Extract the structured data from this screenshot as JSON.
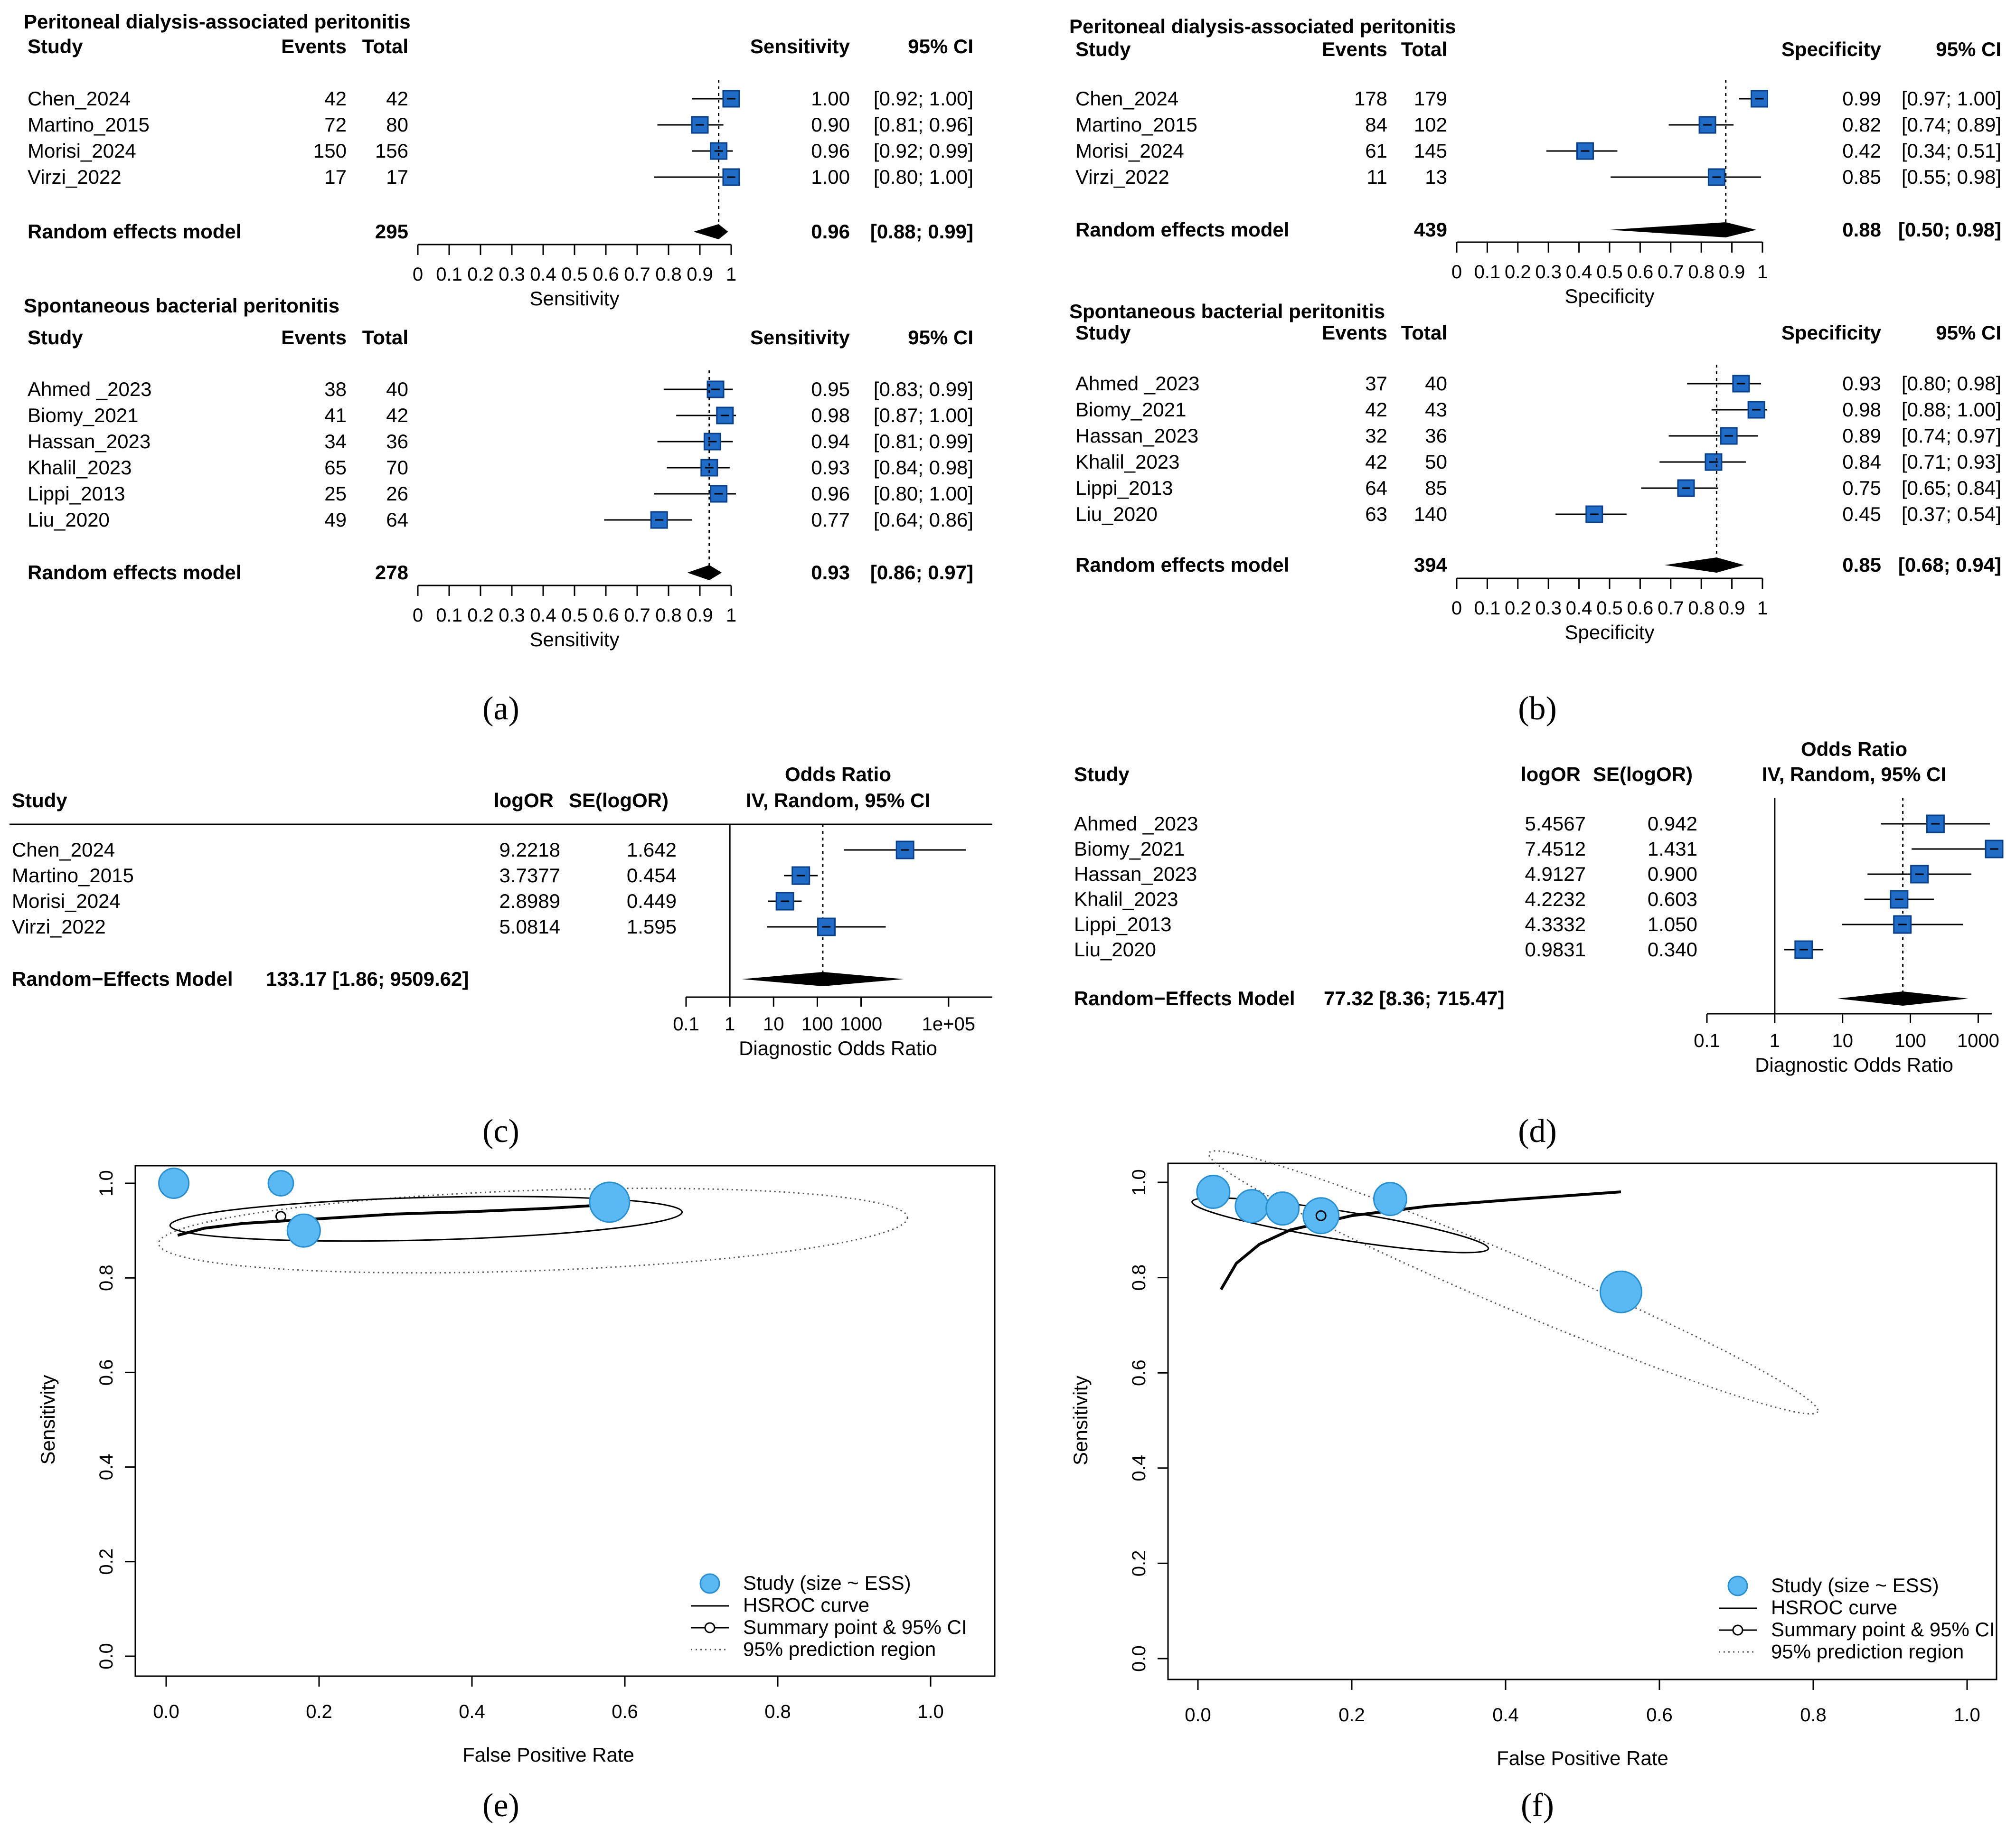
{
  "chart_data": [
    {
      "id": "a",
      "panel_label": "(a)",
      "type": "forest",
      "measure": "Sensitivity",
      "ci_label": "95% CI",
      "col_study": "Study",
      "col_events": "Events",
      "col_total": "Total",
      "axis_label": "Sensitivity",
      "xlim": [
        0,
        1
      ],
      "ticks": [
        {
          "v": 0,
          "l": "0"
        },
        {
          "v": 0.1,
          "l": "0.1"
        },
        {
          "v": 0.2,
          "l": "0.2"
        },
        {
          "v": 0.3,
          "l": "0.3"
        },
        {
          "v": 0.4,
          "l": "0.4"
        },
        {
          "v": 0.5,
          "l": "0.5"
        },
        {
          "v": 0.6,
          "l": "0.6"
        },
        {
          "v": 0.7,
          "l": "0.7"
        },
        {
          "v": 0.8,
          "l": "0.8"
        },
        {
          "v": 0.9,
          "l": "0.9"
        },
        {
          "v": 1,
          "l": "1"
        }
      ],
      "groups": [
        {
          "title": "Peritoneal dialysis-associated peritonitis",
          "studies": [
            {
              "name": "Chen_2024",
              "events": "42",
              "total": "42",
              "est": 1.0,
              "lo": 0.92,
              "hi": 1.0,
              "text": "1.00",
              "ci_text": "[0.92; 1.00]"
            },
            {
              "name": "Martino_2015",
              "events": "72",
              "total": "80",
              "est": 0.9,
              "lo": 0.81,
              "hi": 0.96,
              "text": "0.90",
              "ci_text": "[0.81; 0.96]"
            },
            {
              "name": "Morisi_2024",
              "events": "150",
              "total": "156",
              "est": 0.96,
              "lo": 0.92,
              "hi": 0.99,
              "text": "0.96",
              "ci_text": "[0.92; 0.99]"
            },
            {
              "name": "Virzi_2022",
              "events": "17",
              "total": "17",
              "est": 1.0,
              "lo": 0.8,
              "hi": 1.0,
              "text": "1.00",
              "ci_text": "[0.80; 1.00]"
            }
          ],
          "pooled": {
            "label": "Random effects model",
            "total": "295",
            "est": 0.96,
            "lo": 0.88,
            "hi": 0.99,
            "text": "0.96",
            "ci_text": "[0.88; 0.99]"
          }
        },
        {
          "title": "Spontaneous bacterial peritonitis",
          "studies": [
            {
              "name": "Ahmed _2023",
              "events": "38",
              "total": "40",
              "est": 0.95,
              "lo": 0.83,
              "hi": 0.99,
              "text": "0.95",
              "ci_text": "[0.83; 0.99]"
            },
            {
              "name": "Biomy_2021",
              "events": "41",
              "total": "42",
              "est": 0.98,
              "lo": 0.87,
              "hi": 1.0,
              "text": "0.98",
              "ci_text": "[0.87; 1.00]"
            },
            {
              "name": "Hassan_2023",
              "events": "34",
              "total": "36",
              "est": 0.94,
              "lo": 0.81,
              "hi": 0.99,
              "text": "0.94",
              "ci_text": "[0.81; 0.99]"
            },
            {
              "name": "Khalil_2023",
              "events": "65",
              "total": "70",
              "est": 0.93,
              "lo": 0.84,
              "hi": 0.98,
              "text": "0.93",
              "ci_text": "[0.84; 0.98]"
            },
            {
              "name": "Lippi_2013",
              "events": "25",
              "total": "26",
              "est": 0.96,
              "lo": 0.8,
              "hi": 1.0,
              "text": "0.96",
              "ci_text": "[0.80; 1.00]"
            },
            {
              "name": "Liu_2020",
              "events": "49",
              "total": "64",
              "est": 0.77,
              "lo": 0.64,
              "hi": 0.86,
              "text": "0.77",
              "ci_text": "[0.64; 0.86]"
            }
          ],
          "pooled": {
            "label": "Random effects model",
            "total": "278",
            "est": 0.93,
            "lo": 0.86,
            "hi": 0.97,
            "text": "0.93",
            "ci_text": "[0.86; 0.97]"
          }
        }
      ]
    },
    {
      "id": "b",
      "panel_label": "(b)",
      "type": "forest",
      "measure": "Specificity",
      "ci_label": "95% CI",
      "col_study": "Study",
      "col_events": "Events",
      "col_total": "Total",
      "axis_label": "Specificity",
      "xlim": [
        0,
        1
      ],
      "ticks": [
        {
          "v": 0,
          "l": "0"
        },
        {
          "v": 0.1,
          "l": "0.1"
        },
        {
          "v": 0.2,
          "l": "0.2"
        },
        {
          "v": 0.3,
          "l": "0.3"
        },
        {
          "v": 0.4,
          "l": "0.4"
        },
        {
          "v": 0.5,
          "l": "0.5"
        },
        {
          "v": 0.6,
          "l": "0.6"
        },
        {
          "v": 0.7,
          "l": "0.7"
        },
        {
          "v": 0.8,
          "l": "0.8"
        },
        {
          "v": 0.9,
          "l": "0.9"
        },
        {
          "v": 1,
          "l": "1"
        }
      ],
      "groups": [
        {
          "title": "Peritoneal dialysis-associated peritonitis",
          "studies": [
            {
              "name": "Chen_2024",
              "events": "178",
              "total": "179",
              "est": 0.99,
              "lo": 0.97,
              "hi": 1.0,
              "text": "0.99",
              "ci_text": "[0.97; 1.00]"
            },
            {
              "name": "Martino_2015",
              "events": "84",
              "total": "102",
              "est": 0.82,
              "lo": 0.74,
              "hi": 0.89,
              "text": "0.82",
              "ci_text": "[0.74; 0.89]"
            },
            {
              "name": "Morisi_2024",
              "events": "61",
              "total": "145",
              "est": 0.42,
              "lo": 0.34,
              "hi": 0.51,
              "text": "0.42",
              "ci_text": "[0.34; 0.51]"
            },
            {
              "name": "Virzi_2022",
              "events": "11",
              "total": "13",
              "est": 0.85,
              "lo": 0.55,
              "hi": 0.98,
              "text": "0.85",
              "ci_text": "[0.55; 0.98]"
            }
          ],
          "pooled": {
            "label": "Random effects model",
            "total": "439",
            "est": 0.88,
            "lo": 0.5,
            "hi": 0.98,
            "text": "0.88",
            "ci_text": "[0.50; 0.98]"
          }
        },
        {
          "title": "Spontaneous bacterial peritonitis",
          "studies": [
            {
              "name": "Ahmed _2023",
              "events": "37",
              "total": "40",
              "est": 0.93,
              "lo": 0.8,
              "hi": 0.98,
              "text": "0.93",
              "ci_text": "[0.80; 0.98]"
            },
            {
              "name": "Biomy_2021",
              "events": "42",
              "total": "43",
              "est": 0.98,
              "lo": 0.88,
              "hi": 1.0,
              "text": "0.98",
              "ci_text": "[0.88; 1.00]"
            },
            {
              "name": "Hassan_2023",
              "events": "32",
              "total": "36",
              "est": 0.89,
              "lo": 0.74,
              "hi": 0.97,
              "text": "0.89",
              "ci_text": "[0.74; 0.97]"
            },
            {
              "name": "Khalil_2023",
              "events": "42",
              "total": "50",
              "est": 0.84,
              "lo": 0.71,
              "hi": 0.93,
              "text": "0.84",
              "ci_text": "[0.71; 0.93]"
            },
            {
              "name": "Lippi_2013",
              "events": "64",
              "total": "85",
              "est": 0.75,
              "lo": 0.65,
              "hi": 0.84,
              "text": "0.75",
              "ci_text": "[0.65; 0.84]"
            },
            {
              "name": "Liu_2020",
              "events": "63",
              "total": "140",
              "est": 0.45,
              "lo": 0.37,
              "hi": 0.54,
              "text": "0.45",
              "ci_text": "[0.37; 0.54]"
            }
          ],
          "pooled": {
            "label": "Random effects model",
            "total": "394",
            "est": 0.85,
            "lo": 0.68,
            "hi": 0.94,
            "text": "0.85",
            "ci_text": "[0.68; 0.94]"
          }
        }
      ]
    },
    {
      "id": "c",
      "panel_label": "(c)",
      "type": "forest-log",
      "header_top": "Odds Ratio",
      "header_sub": "IV, Random, 95% CI",
      "col_study": "Study",
      "col_logor": "logOR",
      "col_se": "SE(logOR)",
      "axis_label": "Diagnostic Odds Ratio",
      "log_range": [
        -1,
        6
      ],
      "ticks": [
        {
          "e": -1,
          "l": "0.1"
        },
        {
          "e": 0,
          "l": "1"
        },
        {
          "e": 1,
          "l": "10"
        },
        {
          "e": 2,
          "l": "100"
        },
        {
          "e": 3,
          "l": "1000"
        },
        {
          "e": 5,
          "l": "1e+05"
        }
      ],
      "studies": [
        {
          "name": "Chen_2024",
          "logor": "9.2218",
          "se": "1.642",
          "lor": 9.2218,
          "sev": 1.642
        },
        {
          "name": "Martino_2015",
          "logor": "3.7377",
          "se": "0.454",
          "lor": 3.7377,
          "sev": 0.454
        },
        {
          "name": "Morisi_2024",
          "logor": "2.8989",
          "se": "0.449",
          "lor": 2.8989,
          "sev": 0.449
        },
        {
          "name": "Virzi_2022",
          "logor": "5.0814",
          "se": "1.595",
          "lor": 5.0814,
          "sev": 1.595
        }
      ],
      "pooled": {
        "label": "Random−Effects Model",
        "text": "133.17 [1.86; 9509.62]",
        "est": 133.17,
        "lo": 1.86,
        "hi": 9509.62
      }
    },
    {
      "id": "d",
      "panel_label": "(d)",
      "type": "forest-log",
      "header_top": "Odds Ratio",
      "header_sub": "IV, Random, 95% CI",
      "col_study": "Study",
      "col_logor": "logOR",
      "col_se": "SE(logOR)",
      "axis_label": "Diagnostic Odds Ratio",
      "log_range": [
        -1,
        3.2
      ],
      "ticks": [
        {
          "e": -1,
          "l": "0.1"
        },
        {
          "e": 0,
          "l": "1"
        },
        {
          "e": 1,
          "l": "10"
        },
        {
          "e": 2,
          "l": "100"
        },
        {
          "e": 3,
          "l": "1000"
        }
      ],
      "studies": [
        {
          "name": "Ahmed _2023",
          "logor": "5.4567",
          "se": "0.942",
          "lor": 5.4567,
          "sev": 0.942
        },
        {
          "name": "Biomy_2021",
          "logor": "7.4512",
          "se": "1.431",
          "lor": 7.4512,
          "sev": 1.431
        },
        {
          "name": "Hassan_2023",
          "logor": "4.9127",
          "se": "0.900",
          "lor": 4.9127,
          "sev": 0.9
        },
        {
          "name": "Khalil_2023",
          "logor": "4.2232",
          "se": "0.603",
          "lor": 4.2232,
          "sev": 0.603
        },
        {
          "name": "Lippi_2013",
          "logor": "4.3332",
          "se": "1.050",
          "lor": 4.3332,
          "sev": 1.05
        },
        {
          "name": "Liu_2020",
          "logor": "0.9831",
          "se": "0.340",
          "lor": 0.9831,
          "sev": 0.34
        }
      ],
      "pooled": {
        "label": "Random−Effects Model",
        "text": "77.32 [8.36; 715.47]",
        "est": 77.32,
        "lo": 8.36,
        "hi": 715.47
      }
    },
    {
      "id": "e",
      "panel_label": "(e)",
      "type": "sroc",
      "xlabel": "False Positive Rate",
      "ylabel": "Sensitivity",
      "xlim": [
        0,
        1
      ],
      "ylim": [
        0,
        1
      ],
      "xticks": [
        "0.0",
        "0.2",
        "0.4",
        "0.6",
        "0.8",
        "1.0"
      ],
      "yticks": [
        "0.0",
        "0.2",
        "0.4",
        "0.6",
        "0.8",
        "1.0"
      ],
      "studies": [
        {
          "fpr": 0.01,
          "sens": 1.0,
          "w": 0.45
        },
        {
          "fpr": 0.15,
          "sens": 1.0,
          "w": 0.28
        },
        {
          "fpr": 0.18,
          "sens": 0.9,
          "w": 0.55
        },
        {
          "fpr": 0.58,
          "sens": 0.96,
          "w": 0.8
        }
      ],
      "summary": {
        "fpr": 0.15,
        "sens": 0.93
      },
      "hsroc": [
        [
          0.015,
          0.89
        ],
        [
          0.05,
          0.905
        ],
        [
          0.1,
          0.915
        ],
        [
          0.2,
          0.925
        ],
        [
          0.3,
          0.935
        ],
        [
          0.4,
          0.94
        ],
        [
          0.5,
          0.947
        ],
        [
          0.58,
          0.955
        ]
      ],
      "conf_region": {
        "cx": 0.34,
        "cy": 0.925,
        "rx": 0.335,
        "ry": 0.045,
        "tilt": -1.5
      },
      "pred_region": {
        "cx": 0.48,
        "cy": 0.9,
        "rx": 0.49,
        "ry": 0.085,
        "tilt": -2
      },
      "legend": [
        "Study (size ~ ESS)",
        "HSROC curve",
        "Summary point & 95% CI",
        "95% prediction region"
      ]
    },
    {
      "id": "f",
      "panel_label": "(f)",
      "type": "sroc",
      "xlabel": "False Positive Rate",
      "ylabel": "Sensitivity",
      "xlim": [
        0,
        1
      ],
      "ylim": [
        0,
        1
      ],
      "xticks": [
        "0.0",
        "0.2",
        "0.4",
        "0.6",
        "0.8",
        "1.0"
      ],
      "yticks": [
        "0.0",
        "0.2",
        "0.4",
        "0.6",
        "0.8",
        "1.0"
      ],
      "studies": [
        {
          "fpr": 0.02,
          "sens": 0.98,
          "w": 0.55
        },
        {
          "fpr": 0.07,
          "sens": 0.95,
          "w": 0.55
        },
        {
          "fpr": 0.11,
          "sens": 0.945,
          "w": 0.55
        },
        {
          "fpr": 0.16,
          "sens": 0.93,
          "w": 0.65
        },
        {
          "fpr": 0.25,
          "sens": 0.965,
          "w": 0.55
        },
        {
          "fpr": 0.55,
          "sens": 0.77,
          "w": 0.85
        }
      ],
      "summary": {
        "fpr": 0.16,
        "sens": 0.93
      },
      "hsroc": [
        [
          0.03,
          0.775
        ],
        [
          0.05,
          0.83
        ],
        [
          0.08,
          0.87
        ],
        [
          0.12,
          0.9
        ],
        [
          0.2,
          0.93
        ],
        [
          0.3,
          0.95
        ],
        [
          0.42,
          0.965
        ],
        [
          0.55,
          0.98
        ]
      ],
      "conf_region": {
        "cx": 0.185,
        "cy": 0.91,
        "rx": 0.195,
        "ry": 0.03,
        "tilt": 9
      },
      "pred_region": {
        "cx": 0.41,
        "cy": 0.79,
        "rx": 0.43,
        "ry": 0.055,
        "tilt": 23
      },
      "legend": [
        "Study (size ~ ESS)",
        "HSROC curve",
        "Summary point & 95% CI",
        "95% prediction region"
      ]
    }
  ]
}
